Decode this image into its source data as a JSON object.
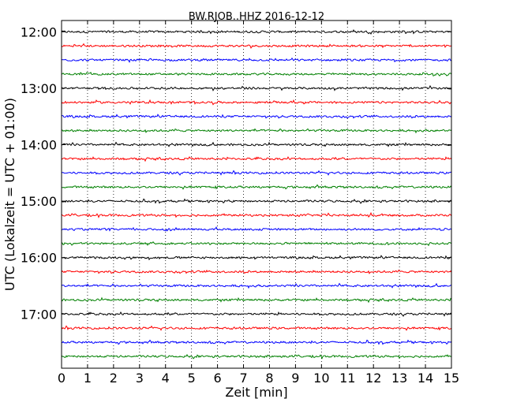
{
  "chart_data": {
    "type": "line",
    "title": "BW.RJOB..HHZ 2016-12-12",
    "xlabel": "Zeit  [min]",
    "ylabel": "UTC (Lokalzeit = UTC + 01:00)",
    "xlim": [
      0,
      15
    ],
    "x_ticks": [
      "0",
      "1",
      "2",
      "3",
      "4",
      "5",
      "6",
      "7",
      "8",
      "9",
      "10",
      "11",
      "12",
      "13",
      "14",
      "15"
    ],
    "y_tick_labels": [
      "12:00",
      "13:00",
      "14:00",
      "15:00",
      "16:00",
      "17:00"
    ],
    "grid": "vertical dotted at each minute",
    "traces_per_hour": 4,
    "minutes_per_trace": 15,
    "colors": [
      "#000000",
      "#ff0000",
      "#0000ff",
      "#008000"
    ],
    "series": [
      {
        "start": "12:00",
        "color": "#000000"
      },
      {
        "start": "12:15",
        "color": "#ff0000"
      },
      {
        "start": "12:30",
        "color": "#0000ff"
      },
      {
        "start": "12:45",
        "color": "#008000"
      },
      {
        "start": "13:00",
        "color": "#000000"
      },
      {
        "start": "13:15",
        "color": "#ff0000"
      },
      {
        "start": "13:30",
        "color": "#0000ff"
      },
      {
        "start": "13:45",
        "color": "#008000"
      },
      {
        "start": "14:00",
        "color": "#000000"
      },
      {
        "start": "14:15",
        "color": "#ff0000"
      },
      {
        "start": "14:30",
        "color": "#0000ff"
      },
      {
        "start": "14:45",
        "color": "#008000"
      },
      {
        "start": "15:00",
        "color": "#000000"
      },
      {
        "start": "15:15",
        "color": "#ff0000"
      },
      {
        "start": "15:30",
        "color": "#0000ff"
      },
      {
        "start": "15:45",
        "color": "#008000"
      },
      {
        "start": "16:00",
        "color": "#000000"
      },
      {
        "start": "16:15",
        "color": "#ff0000"
      },
      {
        "start": "16:30",
        "color": "#0000ff"
      },
      {
        "start": "16:45",
        "color": "#008000"
      },
      {
        "start": "17:00",
        "color": "#000000"
      },
      {
        "start": "17:15",
        "color": "#ff0000"
      },
      {
        "start": "17:30",
        "color": "#0000ff"
      },
      {
        "start": "17:45",
        "color": "#008000"
      }
    ]
  }
}
